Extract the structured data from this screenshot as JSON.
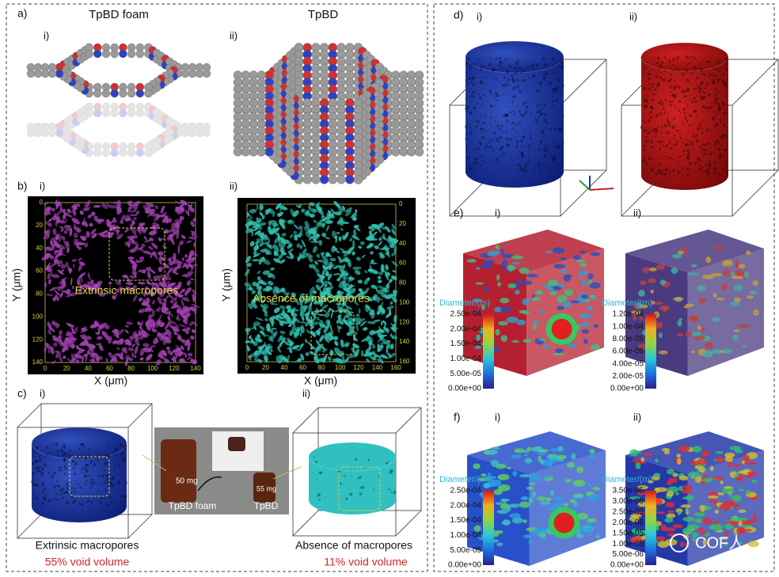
{
  "panel_a": {
    "label": "a)",
    "title_i": "TpBD foam",
    "title_ii": "TpBD",
    "sub_i": "i)",
    "sub_ii": "ii)"
  },
  "panel_b": {
    "label": "b)",
    "sub_i": "i)",
    "sub_ii": "ii)",
    "left": {
      "yticks": [
        0,
        20,
        40,
        60,
        80,
        100,
        120,
        140
      ],
      "xticks": [
        0,
        20,
        40,
        60,
        80,
        100,
        120,
        140
      ],
      "x_label": "X (μm)",
      "y_label": "Y (μm)",
      "annotation": "Extrinsic macropores"
    },
    "right": {
      "yticks": [
        0,
        20,
        40,
        60,
        80,
        100,
        120,
        140,
        160
      ],
      "xticks": [
        0,
        20,
        40,
        60,
        80,
        100,
        120,
        140,
        160
      ],
      "x_label": "X (μm)",
      "y_label": "Y (μm)",
      "annotation": "Absence of macropores"
    }
  },
  "panel_c": {
    "label": "c)",
    "sub_i": "i)",
    "sub_ii": "ii)",
    "photo": {
      "mass_i": "50 mg",
      "mass_ii": "55 mg",
      "name_i": "TpBD foam",
      "name_ii": "TpBD"
    },
    "caption_i": "Extrinsic macropores",
    "void_i": "55% void volume",
    "caption_ii": "Absence of macropores",
    "void_ii": "11% void volume"
  },
  "panel_d": {
    "label": "d)",
    "sub_i": "i)",
    "sub_ii": "ii)"
  },
  "panel_e": {
    "label": "e)",
    "sub_i": "i)",
    "sub_ii": "ii)",
    "colorbar_i": {
      "title": "Diameter/(m)",
      "ticks": [
        "2.50e-04",
        "2.00e-04",
        "1.50e-04",
        "1.00e-04",
        "5.00e-05",
        "0.00e+00"
      ]
    },
    "colorbar_ii": {
      "title": "Diameter/(m)",
      "ticks": [
        "1.20e-04",
        "1.00e-04",
        "8.00e-05",
        "6.00e-05",
        "4.00e-05",
        "2.00e-05",
        "0.00e+00"
      ]
    }
  },
  "panel_f": {
    "label": "f)",
    "sub_i": "i)",
    "sub_ii": "ii)",
    "colorbar_i": {
      "title": "Diameter/(m)",
      "ticks": [
        "2.50e-04",
        "2.00e-04",
        "1.50e-04",
        "1.00e-04",
        "5.00e-05",
        "0.00e+00"
      ]
    },
    "colorbar_ii": {
      "title": "Diameter/(m)",
      "ticks": [
        "3.50e-05",
        "3.00e-05",
        "2.50e-05",
        "2.00e-05",
        "1.50e-05",
        "1.00e-05",
        "5.00e-06",
        "0.00e+00"
      ]
    }
  },
  "watermark": "COF人"
}
